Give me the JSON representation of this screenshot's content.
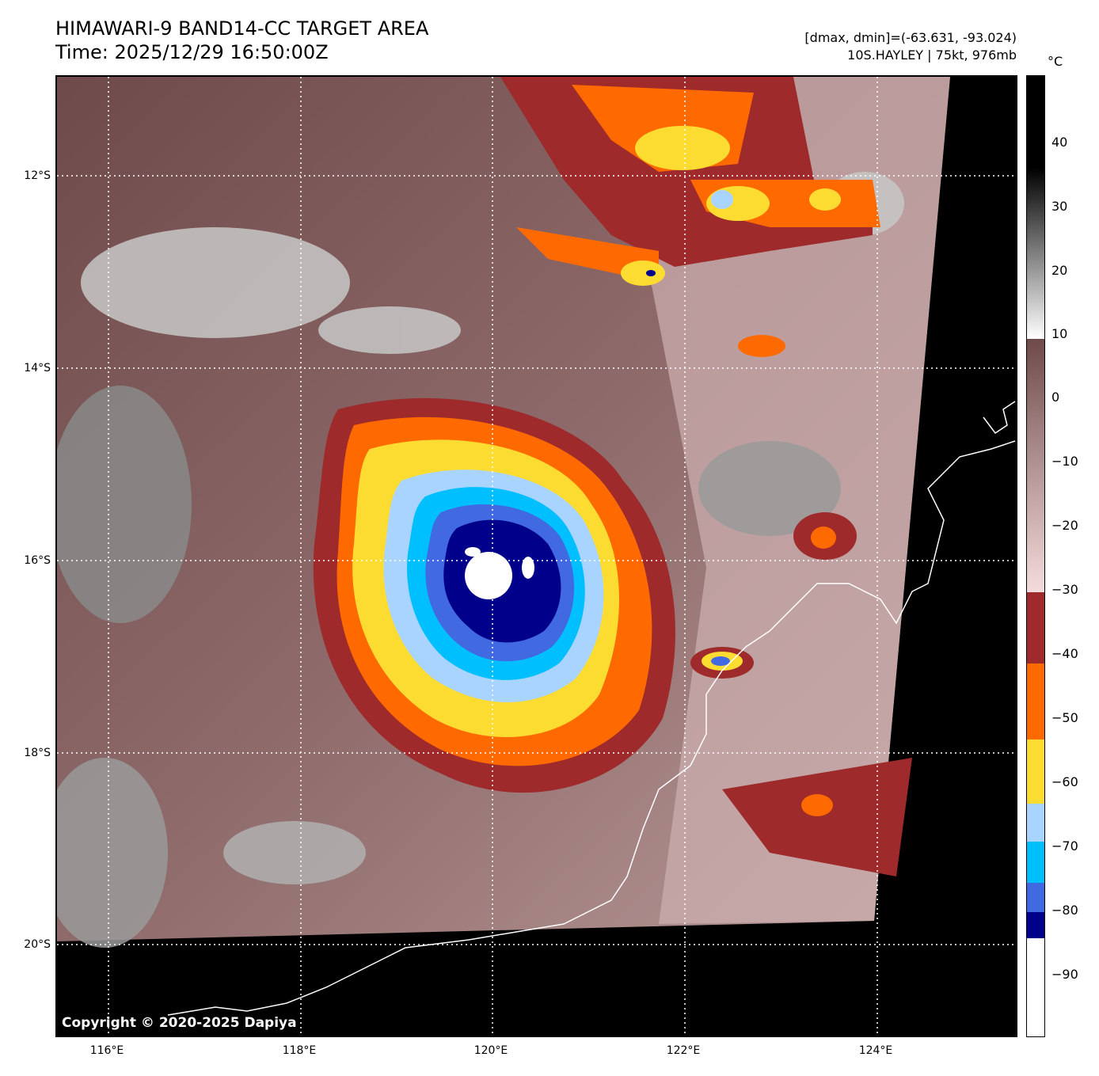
{
  "header": {
    "title_line1": "HIMAWARI-9 BAND14-CC TARGET AREA",
    "title_line2": "Time: 2025/12/29 16:50:00Z",
    "info_line1": "[dmax, dmin]=(-63.631, -93.024)",
    "info_line2": "10S.HAYLEY | 75kt, 976mb"
  },
  "map": {
    "copyright": "Copyright © 2020-2025 Dapiya",
    "lat_labels": [
      "12°S",
      "14°S",
      "16°S",
      "18°S",
      "20°S"
    ],
    "lon_labels": [
      "116°E",
      "118°E",
      "120°E",
      "122°E",
      "124°E"
    ],
    "lat_range": [
      -21.0,
      -11.0
    ],
    "lon_range": [
      115.5,
      125.5
    ]
  },
  "colorbar": {
    "unit": "°C",
    "tick_labels": [
      "40",
      "30",
      "20",
      "10",
      "0",
      "−10",
      "−20",
      "−30",
      "−40",
      "−50",
      "−60",
      "−70",
      "−80",
      "−90"
    ],
    "range": [
      -100,
      50
    ],
    "color_steps": [
      {
        "from": -30,
        "to": -41,
        "color": "#9e2a2b"
      },
      {
        "from": -41,
        "to": -52,
        "color": "#ff6a00"
      },
      {
        "from": -52,
        "to": -62,
        "color": "#fddc32"
      },
      {
        "from": -62,
        "to": -68,
        "color": "#a8d4ff"
      },
      {
        "from": -68,
        "to": -75,
        "color": "#00bfff"
      },
      {
        "from": -75,
        "to": -80,
        "color": "#4169e1"
      },
      {
        "from": -80,
        "to": -84,
        "color": "#00008b"
      },
      {
        "from": -84,
        "to": -100,
        "color": "#ffffff"
      }
    ]
  }
}
